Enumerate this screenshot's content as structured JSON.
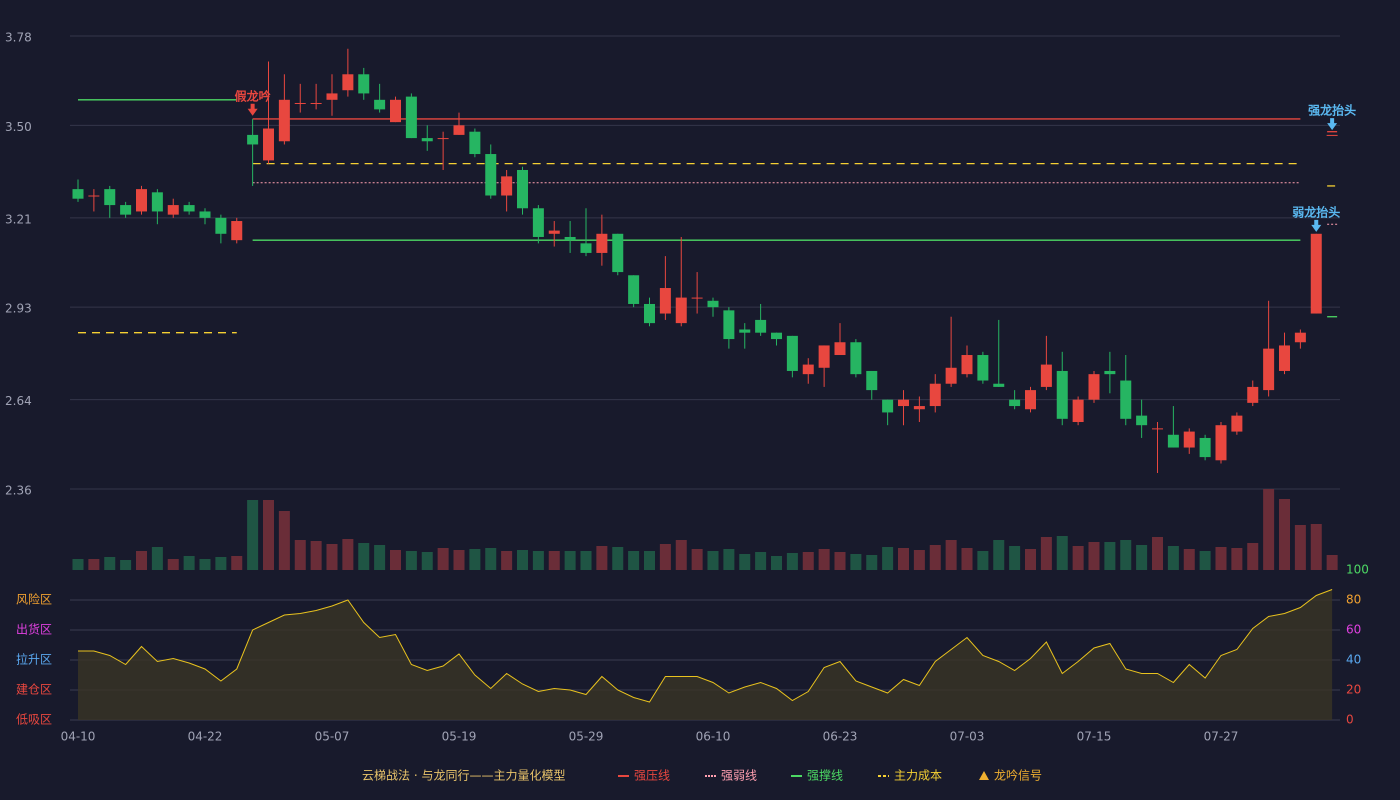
{
  "chart_data": {
    "type": "candlestick",
    "categories": [
      "04-10",
      null,
      null,
      null,
      null,
      null,
      null,
      null,
      "04-22",
      null,
      null,
      null,
      null,
      null,
      null,
      null,
      "05-07",
      null,
      null,
      null,
      null,
      null,
      null,
      null,
      "05-19",
      null,
      null,
      null,
      null,
      null,
      null,
      null,
      "05-29",
      null,
      null,
      null,
      null,
      null,
      null,
      null,
      "06-10",
      null,
      null,
      null,
      null,
      null,
      null,
      null,
      "06-23",
      null,
      null,
      null,
      null,
      null,
      null,
      null,
      "07-03",
      null,
      null,
      null,
      null,
      null,
      null,
      null,
      "07-15",
      null,
      null,
      null,
      null,
      null,
      null,
      null,
      "07-27",
      null,
      null,
      null,
      null,
      null,
      null,
      null
    ],
    "open": [
      3.3,
      3.28,
      3.3,
      3.25,
      3.23,
      3.29,
      3.22,
      3.25,
      3.23,
      3.21,
      3.14,
      3.47,
      3.39,
      3.45,
      3.57,
      3.57,
      3.58,
      3.61,
      3.66,
      3.58,
      3.51,
      3.59,
      3.46,
      3.46,
      3.47,
      3.48,
      3.41,
      3.28,
      3.36,
      3.24,
      3.16,
      3.15,
      3.13,
      3.1,
      3.16,
      3.03,
      2.94,
      2.91,
      2.88,
      2.96,
      2.95,
      2.92,
      2.86,
      2.89,
      2.85,
      2.84,
      2.72,
      2.74,
      2.78,
      2.82,
      2.73,
      2.64,
      2.62,
      2.61,
      2.62,
      2.69,
      2.72,
      2.78,
      2.69,
      2.64,
      2.61,
      2.68,
      2.73,
      2.57,
      2.64,
      2.73,
      2.7,
      2.59,
      2.55,
      2.53,
      2.49,
      2.52,
      2.45,
      2.54,
      2.63,
      2.67,
      2.73,
      2.82,
      2.91,
      3.47
    ],
    "high": [
      3.33,
      3.3,
      3.31,
      3.26,
      3.31,
      3.3,
      3.27,
      3.26,
      3.24,
      3.22,
      3.21,
      3.52,
      3.7,
      3.66,
      3.63,
      3.63,
      3.66,
      3.74,
      3.68,
      3.63,
      3.59,
      3.6,
      3.5,
      3.48,
      3.54,
      3.49,
      3.44,
      3.36,
      3.37,
      3.25,
      3.2,
      3.2,
      3.24,
      3.22,
      3.16,
      3.03,
      2.96,
      3.09,
      3.15,
      3.04,
      2.96,
      2.93,
      2.88,
      2.94,
      2.85,
      2.84,
      2.77,
      2.81,
      2.88,
      2.83,
      2.73,
      2.64,
      2.67,
      2.65,
      2.72,
      2.9,
      2.81,
      2.79,
      2.89,
      2.67,
      2.68,
      2.84,
      2.79,
      2.65,
      2.73,
      2.79,
      2.78,
      2.64,
      2.57,
      2.62,
      2.55,
      2.53,
      2.57,
      2.6,
      2.7,
      2.95,
      2.85,
      2.86,
      3.16,
      3.47
    ],
    "low": [
      3.26,
      3.23,
      3.21,
      3.21,
      3.22,
      3.19,
      3.21,
      3.22,
      3.19,
      3.13,
      3.13,
      3.31,
      3.38,
      3.44,
      3.54,
      3.55,
      3.53,
      3.59,
      3.58,
      3.54,
      3.51,
      3.46,
      3.42,
      3.36,
      3.47,
      3.4,
      3.27,
      3.23,
      3.22,
      3.13,
      3.12,
      3.1,
      3.09,
      3.06,
      3.03,
      2.93,
      2.87,
      2.89,
      2.87,
      2.91,
      2.9,
      2.8,
      2.8,
      2.84,
      2.81,
      2.71,
      2.69,
      2.68,
      2.78,
      2.71,
      2.64,
      2.56,
      2.56,
      2.57,
      2.6,
      2.68,
      2.71,
      2.69,
      2.68,
      2.61,
      2.6,
      2.67,
      2.56,
      2.56,
      2.63,
      2.66,
      2.56,
      2.52,
      2.41,
      2.49,
      2.47,
      2.45,
      2.44,
      2.53,
      2.62,
      2.65,
      2.72,
      2.8,
      2.91,
      3.47
    ],
    "close": [
      3.27,
      3.28,
      3.25,
      3.22,
      3.3,
      3.23,
      3.25,
      3.23,
      3.21,
      3.16,
      3.2,
      3.44,
      3.49,
      3.58,
      3.57,
      3.57,
      3.6,
      3.66,
      3.6,
      3.55,
      3.58,
      3.46,
      3.45,
      3.46,
      3.5,
      3.41,
      3.28,
      3.34,
      3.24,
      3.15,
      3.17,
      3.14,
      3.1,
      3.16,
      3.04,
      2.94,
      2.88,
      2.99,
      2.96,
      2.96,
      2.93,
      2.83,
      2.85,
      2.85,
      2.83,
      2.73,
      2.75,
      2.81,
      2.82,
      2.72,
      2.67,
      2.6,
      2.64,
      2.62,
      2.69,
      2.74,
      2.78,
      2.7,
      2.68,
      2.62,
      2.67,
      2.75,
      2.58,
      2.64,
      2.72,
      2.72,
      2.58,
      2.56,
      2.55,
      2.49,
      2.54,
      2.46,
      2.56,
      2.59,
      2.68,
      2.8,
      2.81,
      2.85,
      3.16,
      3.47
    ],
    "up_color": "#e8473f",
    "down_color": "#26b562",
    "ylim": [
      2.36,
      3.78
    ],
    "yticks": [
      3.78,
      {
        "value": 3.5,
        "label": "3.50"
      },
      3.21,
      2.93,
      2.64,
      2.36
    ],
    "grid": true,
    "lines": [
      {
        "name": "强压线",
        "color": "#e8473f",
        "style": "solid",
        "segments": [
          {
            "start": 11,
            "end": 77,
            "value": 3.52
          },
          {
            "start": 79,
            "end": 79,
            "value": 3.48
          }
        ]
      },
      {
        "name": "强弱线",
        "color": "#ff9fb0",
        "style": "dotted",
        "segments": [
          {
            "start": 11,
            "end": 77,
            "value": 3.32
          },
          {
            "start": 79,
            "end": 79,
            "value": 3.19
          }
        ]
      },
      {
        "name": "强撑线",
        "color": "#4cd964",
        "style": "solid",
        "segments": [
          {
            "start": 0,
            "end": 10,
            "value": 3.58
          },
          {
            "start": 11,
            "end": 77,
            "value": 3.14
          },
          {
            "start": 79,
            "end": 79,
            "value": 2.9
          }
        ]
      },
      {
        "name": "主力成本",
        "color": "#f5d033",
        "style": "dashed",
        "segments": [
          {
            "start": 0,
            "end": 10,
            "value": 2.85
          },
          {
            "start": 11,
            "end": 77,
            "value": 3.38
          },
          {
            "start": 79,
            "end": 79,
            "value": 3.31
          }
        ]
      }
    ],
    "signals": [
      {
        "label": "假龙吟",
        "index": 11,
        "value": 3.53,
        "color": "#e8473f"
      },
      {
        "label": "弱龙抬头",
        "index": 78,
        "value": 3.166,
        "color": "#5ab8f0"
      },
      {
        "label": "强龙抬头",
        "index": 79,
        "value": 3.485,
        "color": "#5ab8f0"
      }
    ],
    "volume": {
      "values": [
        11,
        11,
        13,
        10,
        19,
        23,
        11,
        14,
        11,
        13,
        14,
        70,
        70,
        59,
        30,
        29,
        26,
        31,
        27,
        25,
        20,
        19,
        18,
        22,
        20,
        21,
        22,
        19,
        20,
        19,
        19,
        19,
        19,
        24,
        23,
        19,
        19,
        26,
        30,
        21,
        19,
        21,
        16,
        18,
        14,
        17,
        18,
        21,
        18,
        16,
        15,
        23,
        22,
        20,
        25,
        30,
        22,
        19,
        30,
        24,
        21,
        33,
        34,
        24,
        28,
        28,
        30,
        25,
        33,
        24,
        21,
        19,
        23,
        22,
        27,
        81,
        71,
        45,
        46,
        15
      ],
      "vlim": [
        0,
        81
      ]
    },
    "indicator": {
      "values": [
        46,
        46,
        43,
        37,
        49,
        39,
        41,
        38,
        34,
        26,
        34,
        60,
        65,
        70,
        71,
        73,
        76,
        80,
        65,
        55,
        57,
        37,
        33,
        36,
        44,
        30,
        21,
        31,
        24,
        19,
        21,
        20,
        17,
        29,
        20,
        15,
        12,
        29,
        29,
        29,
        25,
        18,
        22,
        25,
        21,
        13,
        19,
        35,
        39,
        26,
        22,
        18,
        27,
        23,
        39,
        47,
        55,
        43,
        39,
        33,
        41,
        52,
        31,
        39,
        48,
        51,
        34,
        31,
        31,
        25,
        37,
        28,
        43,
        47,
        61,
        69,
        71,
        75,
        83,
        87
      ],
      "color": "#e8c21e",
      "ylim": [
        0,
        100
      ],
      "yticks": [
        0,
        20,
        40,
        60,
        80,
        100
      ],
      "ytick_colors": [
        "#e8473f",
        "#e8473f",
        "#5aa8f0",
        "#e040e0",
        "#f0a030",
        "#4cd964"
      ],
      "zones": [
        {
          "label": "风险区",
          "value": 80,
          "color": "#f0a030"
        },
        {
          "label": "出货区",
          "value": 60,
          "color": "#e040e0"
        },
        {
          "label": "拉升区",
          "value": 40,
          "color": "#5aa8f0"
        },
        {
          "label": "建仓区",
          "value": 20,
          "color": "#e8473f"
        },
        {
          "label": "低吸区",
          "value": 0,
          "color": "#e8473f"
        }
      ]
    },
    "legend": {
      "title": "云梯战法 · 与龙同行——主力量化模型",
      "signal_label": "龙吟信号",
      "signal_color": "#f0b030"
    }
  }
}
